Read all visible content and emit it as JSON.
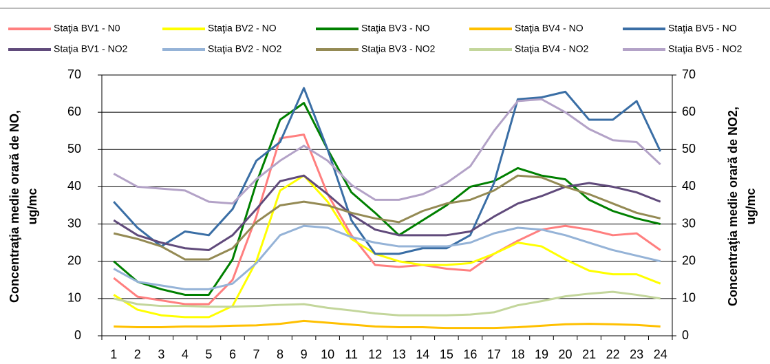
{
  "chart_data": {
    "type": "line",
    "categories": [
      "1",
      "2",
      "3",
      "4",
      "5",
      "6",
      "7",
      "8",
      "9",
      "10",
      "11",
      "12",
      "13",
      "14",
      "15",
      "16",
      "17",
      "18",
      "19",
      "20",
      "21",
      "22",
      "23",
      "24"
    ],
    "ylabel": [
      "Concentraţia medie orară de NO,",
      "ug/mc"
    ],
    "y2label": [
      "Concentraţia medie orară de NO2,",
      "ug/mc"
    ],
    "ylim": [
      0,
      70
    ],
    "yticks": [
      0,
      10,
      20,
      30,
      40,
      50,
      60,
      70
    ],
    "y2lim": [
      0,
      70
    ],
    "y2ticks": [
      0,
      10,
      20,
      30,
      40,
      50,
      60,
      70
    ],
    "grid": true,
    "legend": "top",
    "series": [
      {
        "name": "Staţia BV1 - N0",
        "color": "#ff7f7f",
        "values": [
          15.5,
          10.5,
          9.5,
          8.5,
          8.5,
          15,
          32,
          53,
          54,
          38,
          27,
          19,
          18.5,
          19,
          18,
          17.5,
          22,
          25.5,
          28.5,
          29.5,
          28.5,
          27,
          27.5,
          23
        ]
      },
      {
        "name": "Staţia BV2 - NO",
        "color": "#ffff00",
        "values": [
          11,
          7,
          5.5,
          5,
          5,
          8,
          20,
          39,
          43,
          36,
          26,
          22,
          20,
          19,
          19,
          19.5,
          22,
          25,
          24,
          20.5,
          17.5,
          16.5,
          16.5,
          14
        ]
      },
      {
        "name": "Staţia BV3 - NO",
        "color": "#008000",
        "values": [
          20,
          14.5,
          12.5,
          11,
          11,
          20.5,
          41,
          58,
          62.5,
          50,
          38.5,
          33,
          27,
          31,
          35,
          40,
          41.5,
          45,
          43,
          42,
          36.5,
          33.5,
          31.5,
          30
        ]
      },
      {
        "name": "Staţia BV4 - NO",
        "color": "#ffc000",
        "values": [
          2.5,
          2.3,
          2.3,
          2.5,
          2.5,
          2.7,
          2.8,
          3.2,
          4,
          3.5,
          3,
          2.5,
          2.3,
          2.3,
          2.1,
          2.1,
          2.1,
          2.3,
          2.7,
          3.1,
          3.2,
          3.1,
          2.9,
          2.5
        ]
      },
      {
        "name": "Staţia BV5 - NO",
        "color": "#3a6ea5",
        "values": [
          36,
          29,
          24,
          28,
          27,
          34,
          47,
          52,
          66.5,
          50,
          31,
          22,
          22,
          23.5,
          23.5,
          27,
          41,
          63.5,
          64,
          65.5,
          58,
          58,
          63,
          49.5
        ]
      },
      {
        "name": "Staţia BV1 - NO2",
        "color": "#604a7b",
        "axis": "y2",
        "values": [
          31,
          27,
          25,
          23.5,
          23,
          27,
          34,
          41.5,
          43,
          38,
          32.5,
          28.5,
          27,
          27,
          27,
          28,
          32,
          35.5,
          37.5,
          40,
          41,
          40,
          38.5,
          36
        ]
      },
      {
        "name": "Staţia BV2 - NO2",
        "color": "#95b3d7",
        "axis": "y2",
        "values": [
          18,
          14.5,
          13.5,
          12.5,
          12.5,
          14,
          19.5,
          27,
          29.5,
          29,
          26.5,
          25,
          24,
          24,
          24,
          25,
          27.5,
          29,
          28.5,
          27,
          25,
          23,
          21.5,
          20
        ]
      },
      {
        "name": "Staţia BV3 - NO2",
        "color": "#948a54",
        "axis": "y2",
        "values": [
          27.5,
          26,
          24,
          20.5,
          20.5,
          23.5,
          30.5,
          35,
          36,
          35,
          33,
          31.5,
          30.5,
          33.5,
          35.5,
          36.5,
          39,
          43,
          42.5,
          40,
          38,
          35.5,
          33,
          31.5
        ]
      },
      {
        "name": "Staţia BV4 - NO2",
        "color": "#c3d69b",
        "axis": "y2",
        "values": [
          10,
          8.5,
          8,
          8,
          7.8,
          7.8,
          8,
          8.3,
          8.5,
          7.5,
          6.8,
          6,
          5.5,
          5.5,
          5.5,
          5.7,
          6.3,
          8.2,
          9.3,
          10.6,
          11.3,
          11.8,
          11,
          10
        ]
      },
      {
        "name": "Staţia BV5 - NO2",
        "color": "#b3a2c7",
        "axis": "y2",
        "values": [
          43.5,
          40,
          39.5,
          39,
          36,
          35.5,
          42,
          47,
          51,
          47,
          40.5,
          36.5,
          36.5,
          38,
          41,
          45.5,
          55,
          63,
          63.5,
          60,
          55.5,
          52.5,
          52,
          46
        ]
      }
    ]
  }
}
